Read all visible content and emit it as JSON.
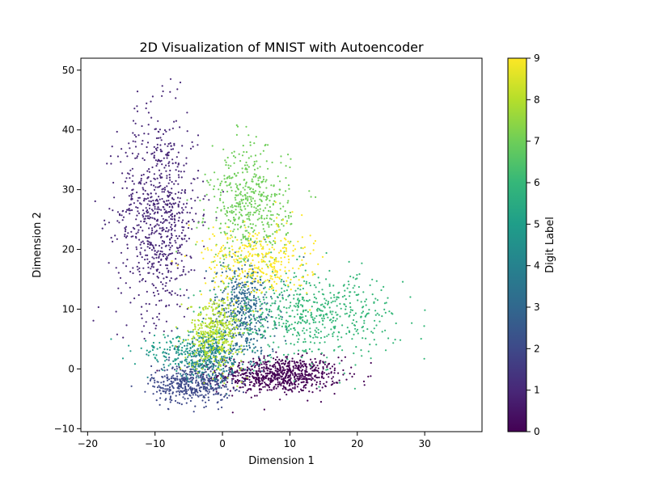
{
  "chart_data": {
    "type": "scatter",
    "title": "2D Visualization of MNIST with Autoencoder",
    "xlabel": "Dimension 1",
    "ylabel": "Dimension 2",
    "xlim": [
      -21,
      38.5
    ],
    "ylim": [
      -10.5,
      52
    ],
    "xticks": [
      "−20",
      "−10",
      "0",
      "10",
      "20",
      "30"
    ],
    "yticks": [
      "−10",
      "0",
      "10",
      "20",
      "30",
      "40",
      "50"
    ],
    "grid": false,
    "legend": "none",
    "colorbar": {
      "label": "Digit Label",
      "range": [
        0,
        9
      ],
      "ticks": [
        "0",
        "1",
        "2",
        "3",
        "4",
        "5",
        "6",
        "7",
        "8",
        "9"
      ],
      "colormap": "viridis",
      "colors": [
        "#440154",
        "#482878",
        "#3e4989",
        "#31688e",
        "#26828e",
        "#1f9e89",
        "#35b779",
        "#6ece58",
        "#b5de2b",
        "#fde725"
      ]
    },
    "clusters": [
      {
        "label": 0,
        "color": "#440154",
        "center": [
          8.5,
          -1.0
        ],
        "spread": [
          4.5,
          1.5
        ],
        "count": 750
      },
      {
        "label": 1,
        "color": "#482878",
        "center": [
          -9.5,
          26.0
        ],
        "spread": [
          3.0,
          8.5
        ],
        "count": 800
      },
      {
        "label": 2,
        "color": "#3e4989",
        "center": [
          -4.5,
          -2.5
        ],
        "spread": [
          3.0,
          1.6
        ],
        "count": 450
      },
      {
        "label": 3,
        "color": "#31688e",
        "center": [
          3.0,
          10.0
        ],
        "spread": [
          2.5,
          4.0
        ],
        "count": 450
      },
      {
        "label": 4,
        "color": "#26828e",
        "center": [
          -2.0,
          2.0
        ],
        "spread": [
          3.0,
          2.0
        ],
        "count": 350
      },
      {
        "label": 5,
        "color": "#1f9e89",
        "center": [
          -6.0,
          3.0
        ],
        "spread": [
          3.5,
          1.2
        ],
        "count": 150
      },
      {
        "label": 6,
        "color": "#35b779",
        "center": [
          13.0,
          9.0
        ],
        "spread": [
          6.5,
          3.5
        ],
        "count": 600
      },
      {
        "label": 7,
        "color": "#6ece58",
        "center": [
          4.0,
          27.0
        ],
        "spread": [
          3.0,
          5.0
        ],
        "count": 500
      },
      {
        "label": 8,
        "color": "#b5de2b",
        "center": [
          -1.0,
          6.0
        ],
        "spread": [
          2.0,
          3.0
        ],
        "count": 400
      },
      {
        "label": 9,
        "color": "#fde725",
        "center": [
          5.0,
          18.0
        ],
        "spread": [
          4.0,
          3.0
        ],
        "count": 350
      }
    ]
  }
}
